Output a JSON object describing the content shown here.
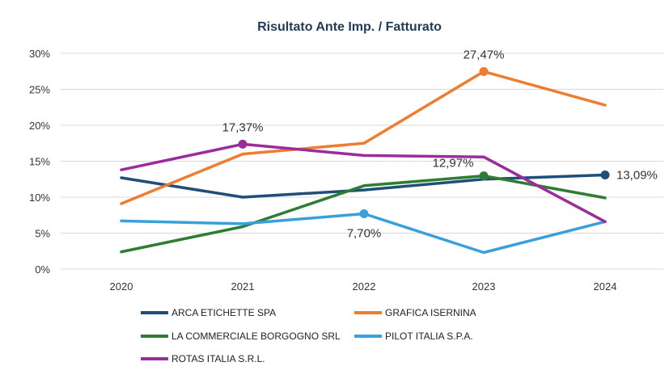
{
  "chart_data": {
    "type": "line",
    "title": "Risultato Ante Imp. / Fatturato",
    "xlabel": "",
    "ylabel": "",
    "categories": [
      "2020",
      "2021",
      "2022",
      "2023",
      "2024"
    ],
    "y_ticks": [
      "0%",
      "5%",
      "10%",
      "15%",
      "20%",
      "25%",
      "30%"
    ],
    "ylim": [
      0,
      30
    ],
    "grid": true,
    "legend_position": "bottom",
    "series": [
      {
        "name": "ARCA ETICHETTE SPA",
        "color": "#1f4e79",
        "values": [
          12.7,
          10.0,
          11.0,
          12.5,
          13.09
        ]
      },
      {
        "name": "GRAFICA ISERNINA",
        "color": "#ed7d31",
        "values": [
          9.1,
          16.0,
          17.5,
          27.47,
          22.8
        ]
      },
      {
        "name": "LA COMMERCIALE BORGOGNO SRL",
        "color": "#2e7d32",
        "values": [
          2.4,
          5.9,
          11.6,
          12.97,
          9.9
        ]
      },
      {
        "name": "PILOT ITALIA S.P.A.",
        "color": "#3aa0dc",
        "values": [
          6.7,
          6.3,
          7.7,
          2.3,
          6.6
        ]
      },
      {
        "name": "ROTAS ITALIA S.R.L.",
        "color": "#9b2c9b",
        "values": [
          13.8,
          17.37,
          15.8,
          15.6,
          6.6
        ]
      }
    ],
    "annotations": [
      {
        "series": 4,
        "index": 1,
        "text": "17,37%",
        "position": "above"
      },
      {
        "series": 1,
        "index": 3,
        "text": "27,47%",
        "position": "above"
      },
      {
        "series": 2,
        "index": 3,
        "text": "12,97%",
        "position": "above-left"
      },
      {
        "series": 3,
        "index": 2,
        "text": "7,70%",
        "position": "below"
      },
      {
        "series": 0,
        "index": 4,
        "text": "13,09%",
        "position": "right"
      }
    ]
  }
}
